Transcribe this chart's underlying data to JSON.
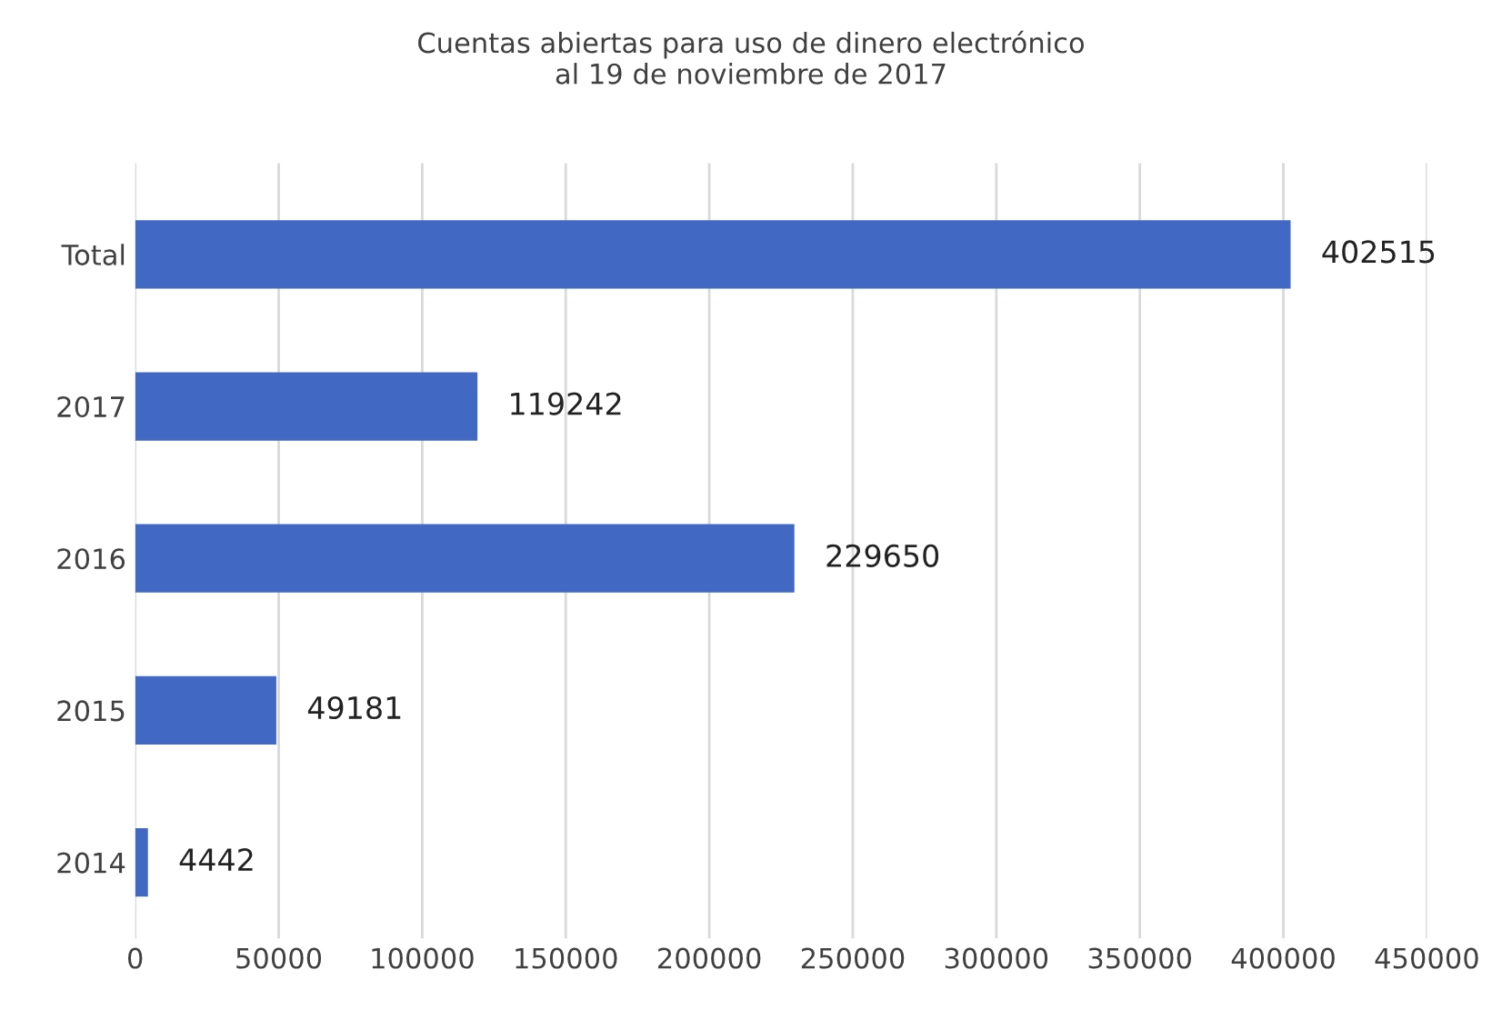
{
  "chart_data": {
    "type": "bar",
    "orientation": "horizontal",
    "title": "Cuentas abiertas para uso de dinero electrónico\nal 19 de noviembre de 2017",
    "categories": [
      "Total",
      "2017",
      "2016",
      "2015",
      "2014"
    ],
    "values": [
      402515,
      119242,
      229650,
      49181,
      4442
    ],
    "color": "#4169c4",
    "xlim": [
      0,
      450000
    ],
    "xticks": [
      0,
      50000,
      100000,
      150000,
      200000,
      250000,
      300000,
      350000,
      400000,
      450000
    ],
    "grid": "x",
    "data_labels": true
  }
}
